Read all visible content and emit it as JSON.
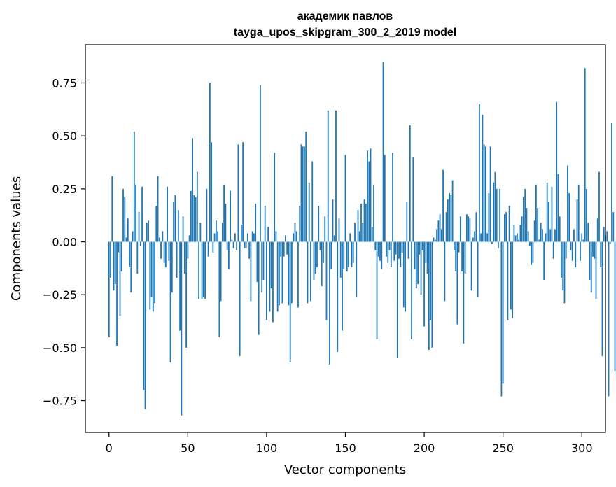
{
  "chart_data": {
    "type": "bar",
    "title": "академик павлов",
    "subtitle": "tayga_upos_skipgram_300_2_2019 model",
    "xlabel": "Vector components",
    "ylabel": "Components values",
    "xlim": [
      -15,
      315
    ],
    "ylim": [
      -0.9,
      0.93
    ],
    "xticks": [
      0,
      50,
      100,
      150,
      200,
      250,
      300
    ],
    "yticks": [
      -0.75,
      -0.5,
      -0.25,
      0.0,
      0.25,
      0.5,
      0.75
    ],
    "ytick_labels": [
      "−0.75",
      "−0.50",
      "−0.25",
      "0.00",
      "0.25",
      "0.50",
      "0.75"
    ],
    "xtick_labels": [
      "0",
      "50",
      "100",
      "150",
      "200",
      "250",
      "300"
    ],
    "grid": false,
    "bar_color": "#1f77b4",
    "x_start": 0,
    "values": [
      -0.45,
      -0.17,
      0.31,
      -0.23,
      -0.2,
      -0.49,
      -0.05,
      -0.35,
      -0.14,
      0.25,
      0.21,
      0.02,
      0.11,
      -0.12,
      -0.24,
      0.05,
      0.52,
      0.27,
      -0.15,
      0.14,
      -0.02,
      0.26,
      -0.7,
      -0.79,
      0.09,
      0.1,
      -0.32,
      -0.26,
      -0.33,
      -0.29,
      0.17,
      0.31,
      0.02,
      -0.08,
      0.05,
      -0.1,
      -0.12,
      0.26,
      -0.09,
      -0.57,
      -0.24,
      0.19,
      0.22,
      -0.17,
      0.15,
      -0.42,
      -0.82,
      0.12,
      -0.15,
      -0.5,
      -0.08,
      0.03,
      0.24,
      0.49,
      0.22,
      0.21,
      0.33,
      -0.27,
      0.09,
      -0.27,
      -0.26,
      -0.27,
      0.25,
      -0.07,
      0.75,
      0.47,
      -0.05,
      0.04,
      0.1,
      0.05,
      -0.45,
      -0.28,
      0.09,
      0.27,
      0.18,
      -0.04,
      -0.13,
      0.24,
      0.01,
      -0.03,
      0.04,
      -0.04,
      0.46,
      -0.54,
      0.08,
      0.47,
      -0.03,
      -0.03,
      0.04,
      -0.08,
      -0.28,
      0.05,
      0.04,
      0.18,
      -0.19,
      -0.44,
      0.74,
      -0.24,
      -0.18,
      0.17,
      -0.37,
      0.07,
      -0.33,
      -0.22,
      -0.38,
      0.42,
      0.05,
      -0.33,
      -0.3,
      -0.07,
      -0.29,
      -0.07,
      0.03,
      -0.06,
      -0.3,
      -0.57,
      -0.29,
      0.04,
      0.09,
      0.05,
      -0.31,
      0.17,
      0.46,
      0.45,
      0.45,
      0.52,
      -0.29,
      0.28,
      -0.28,
      0.38,
      -0.18,
      -0.15,
      -0.12,
      0.17,
      -0.04,
      -0.21,
      -0.1,
      0.12,
      -0.37,
      0.62,
      -0.58,
      -0.13,
      0.2,
      0.03,
      0.62,
      -0.52,
      0.11,
      -0.17,
      -0.42,
      -0.13,
      0.41,
      -0.14,
      -0.12,
      0.04,
      -0.12,
      -0.1,
      0.09,
      -0.26,
      0.15,
      0.05,
      0.18,
      0.09,
      0.2,
      0.18,
      0.43,
      0.38,
      0.44,
      0.07,
      0.27,
      -0.04,
      -0.46,
      -0.07,
      -0.09,
      -0.13,
      0.85,
      0.41,
      -0.07,
      -0.1,
      -0.04,
      -0.12,
      0.42,
      -0.09,
      -0.06,
      -0.55,
      -0.08,
      -0.12,
      -0.05,
      -0.31,
      -0.33,
      0.19,
      -0.08,
      0.55,
      -0.46,
      0.4,
      -0.13,
      -0.22,
      -0.2,
      -0.06,
      -0.25,
      -0.04,
      -0.4,
      -0.1,
      -0.15,
      -0.51,
      -0.37,
      -0.5,
      0.02,
      0.01,
      0.06,
      0.1,
      0.13,
      0.06,
      0.34,
      -0.28,
      0.14,
      0.2,
      0.23,
      0.22,
      0.29,
      -0.04,
      -0.14,
      -0.39,
      -0.05,
      0.12,
      -0.14,
      -0.48,
      -0.15,
      0.13,
      0.12,
      0.11,
      -0.23,
      0.02,
      0.05,
      0.14,
      -0.26,
      0.65,
      0.04,
      0.6,
      0.46,
      0.45,
      0.04,
      0.23,
      0.45,
      -0.01,
      0.28,
      0.33,
      0.25,
      -0.03,
      0.25,
      -0.73,
      -0.67,
      0.13,
      0.14,
      -0.37,
      0.17,
      -0.32,
      -0.36,
      0.08,
      0.03,
      0.04,
      0.01,
      0.08,
      0.12,
      0.21,
      0.25,
      0.16,
      0.05,
      -0.02,
      -0.11,
      -0.1,
      0.1,
      0.27,
      0.16,
      0.01,
      0.09,
      0.06,
      -0.18,
      0.04,
      0.28,
      0.19,
      0.06,
      0.26,
      -0.08,
      0.06,
      0.66,
      0.32,
      0.12,
      -0.17,
      -0.23,
      -0.29,
      -0.08,
      0.36,
      0.23,
      -0.04,
      -0.09,
      0.06,
      -0.12,
      0.2,
      0.27,
      -0.09,
      0.04,
      0.01,
      0.82,
      0.25,
      0.09,
      -0.18,
      -0.24,
      -0.07,
      -0.08,
      -0.27,
      0.11,
      0.33,
      -0.12,
      -0.54,
      0.07,
      0.03,
      0.05,
      -0.73,
      -0.01,
      0.56,
      0.14,
      -0.61
    ]
  }
}
